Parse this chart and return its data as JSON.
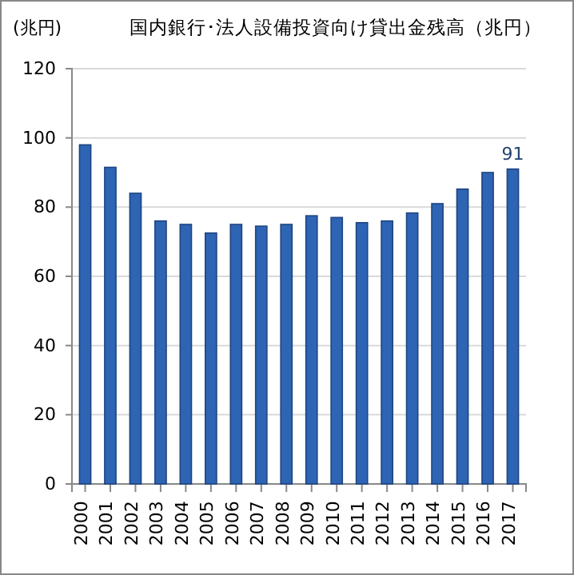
{
  "chart_data": {
    "type": "bar",
    "title": "国内銀行･法人設備投資向け貸出金残高（兆円）",
    "ylabel": "(兆円)",
    "categories": [
      "2000",
      "2001",
      "2002",
      "2003",
      "2004",
      "2005",
      "2006",
      "2007",
      "2008",
      "2009",
      "2010",
      "2011",
      "2012",
      "2013",
      "2014",
      "2015",
      "2016",
      "2017"
    ],
    "values": [
      98,
      91.5,
      84,
      76,
      75,
      72.5,
      75,
      74.5,
      75,
      77.5,
      77,
      75.5,
      76,
      78.3,
      81,
      85.2,
      90,
      91
    ],
    "value_labels": [
      null,
      null,
      null,
      null,
      null,
      null,
      null,
      null,
      null,
      null,
      null,
      null,
      null,
      null,
      null,
      null,
      null,
      "91"
    ],
    "color": "#2e64b4",
    "ylim": [
      0,
      120
    ],
    "yticks": [
      0,
      20,
      40,
      60,
      80,
      100,
      120
    ],
    "grid": "y"
  }
}
